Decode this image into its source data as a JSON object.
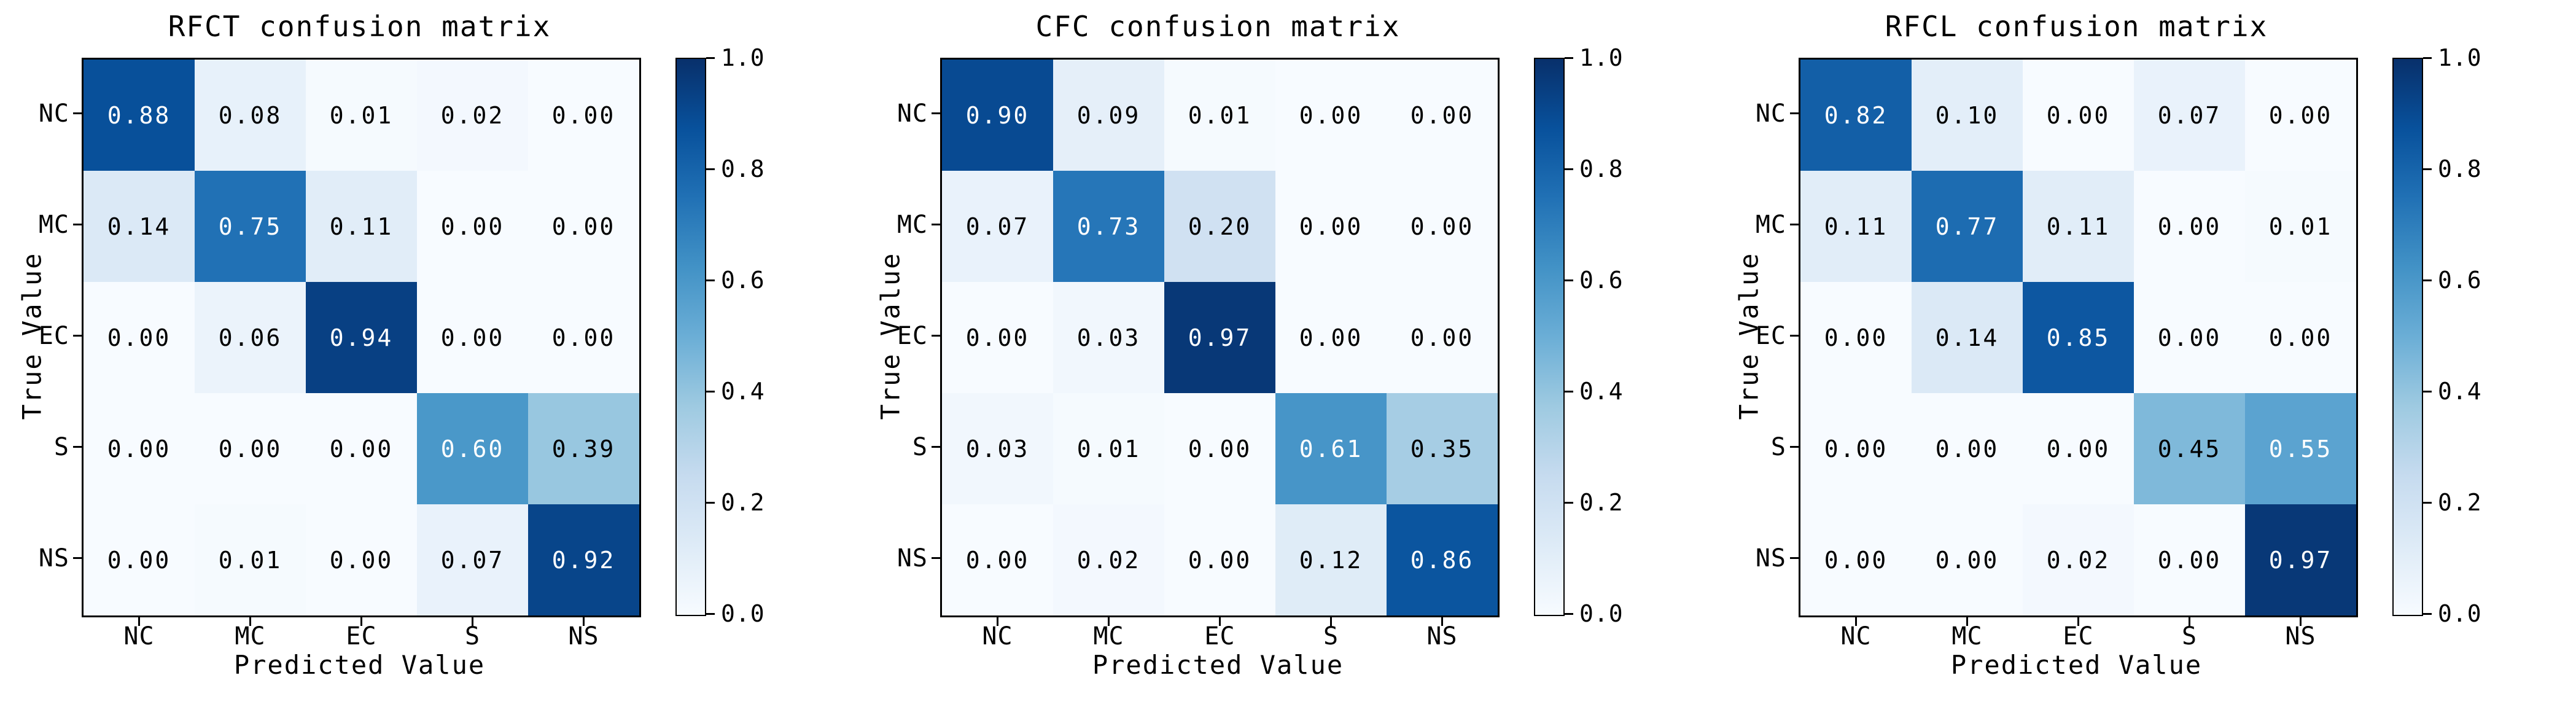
{
  "figure": {
    "background": "#ffffff",
    "n_subplots": 3
  },
  "style": {
    "colormap_name": "Blues",
    "colormap_stops": [
      {
        "t": 0.0,
        "color": "#f7fbff"
      },
      {
        "t": 0.125,
        "color": "#deebf7"
      },
      {
        "t": 0.25,
        "color": "#c6dbef"
      },
      {
        "t": 0.375,
        "color": "#9ecae1"
      },
      {
        "t": 0.5,
        "color": "#6baed6"
      },
      {
        "t": 0.625,
        "color": "#4292c6"
      },
      {
        "t": 0.75,
        "color": "#2171b5"
      },
      {
        "t": 0.875,
        "color": "#08519c"
      },
      {
        "t": 1.0,
        "color": "#08306b"
      }
    ],
    "cell_text_dark": "#000000",
    "cell_text_light": "#ffffff",
    "white_text_threshold": 0.5,
    "axis_color": "#000000"
  },
  "chart_data": [
    {
      "id": "rfct",
      "type": "heatmap",
      "title": "RFCT confusion matrix",
      "xlabel": "Predicted Value",
      "ylabel": "True Value",
      "x_categories": [
        "NC",
        "MC",
        "EC",
        "S",
        "NS"
      ],
      "y_categories": [
        "NC",
        "MC",
        "EC",
        "S",
        "NS"
      ],
      "values": [
        [
          0.88,
          0.08,
          0.01,
          0.02,
          0.0
        ],
        [
          0.14,
          0.75,
          0.11,
          0.0,
          0.0
        ],
        [
          0.0,
          0.06,
          0.94,
          0.0,
          0.0
        ],
        [
          0.0,
          0.0,
          0.0,
          0.6,
          0.39
        ],
        [
          0.0,
          0.01,
          0.0,
          0.07,
          0.92
        ]
      ],
      "vmin": 0.0,
      "vmax": 1.0,
      "colorbar_ticks": [
        "1.0",
        "0.8",
        "0.6",
        "0.4",
        "0.2",
        "0.0"
      ]
    },
    {
      "id": "cfc",
      "type": "heatmap",
      "title": "CFC confusion matrix",
      "xlabel": "Predicted Value",
      "ylabel": "True Value",
      "x_categories": [
        "NC",
        "MC",
        "EC",
        "S",
        "NS"
      ],
      "y_categories": [
        "NC",
        "MC",
        "EC",
        "S",
        "NS"
      ],
      "values": [
        [
          0.9,
          0.09,
          0.01,
          0.0,
          0.0
        ],
        [
          0.07,
          0.73,
          0.2,
          0.0,
          0.0
        ],
        [
          0.0,
          0.03,
          0.97,
          0.0,
          0.0
        ],
        [
          0.03,
          0.01,
          0.0,
          0.61,
          0.35
        ],
        [
          0.0,
          0.02,
          0.0,
          0.12,
          0.86
        ]
      ],
      "vmin": 0.0,
      "vmax": 1.0,
      "colorbar_ticks": [
        "1.0",
        "0.8",
        "0.6",
        "0.4",
        "0.2",
        "0.0"
      ]
    },
    {
      "id": "rfcl",
      "type": "heatmap",
      "title": "RFCL confusion matrix",
      "xlabel": "Predicted Value",
      "ylabel": "True Value",
      "x_categories": [
        "NC",
        "MC",
        "EC",
        "S",
        "NS"
      ],
      "y_categories": [
        "NC",
        "MC",
        "EC",
        "S",
        "NS"
      ],
      "values": [
        [
          0.82,
          0.1,
          0.0,
          0.07,
          0.0
        ],
        [
          0.11,
          0.77,
          0.11,
          0.0,
          0.01
        ],
        [
          0.0,
          0.14,
          0.85,
          0.0,
          0.0
        ],
        [
          0.0,
          0.0,
          0.0,
          0.45,
          0.55
        ],
        [
          0.0,
          0.0,
          0.02,
          0.0,
          0.97
        ]
      ],
      "vmin": 0.0,
      "vmax": 1.0,
      "colorbar_ticks": [
        "1.0",
        "0.8",
        "0.6",
        "0.4",
        "0.2",
        "0.0"
      ]
    }
  ]
}
